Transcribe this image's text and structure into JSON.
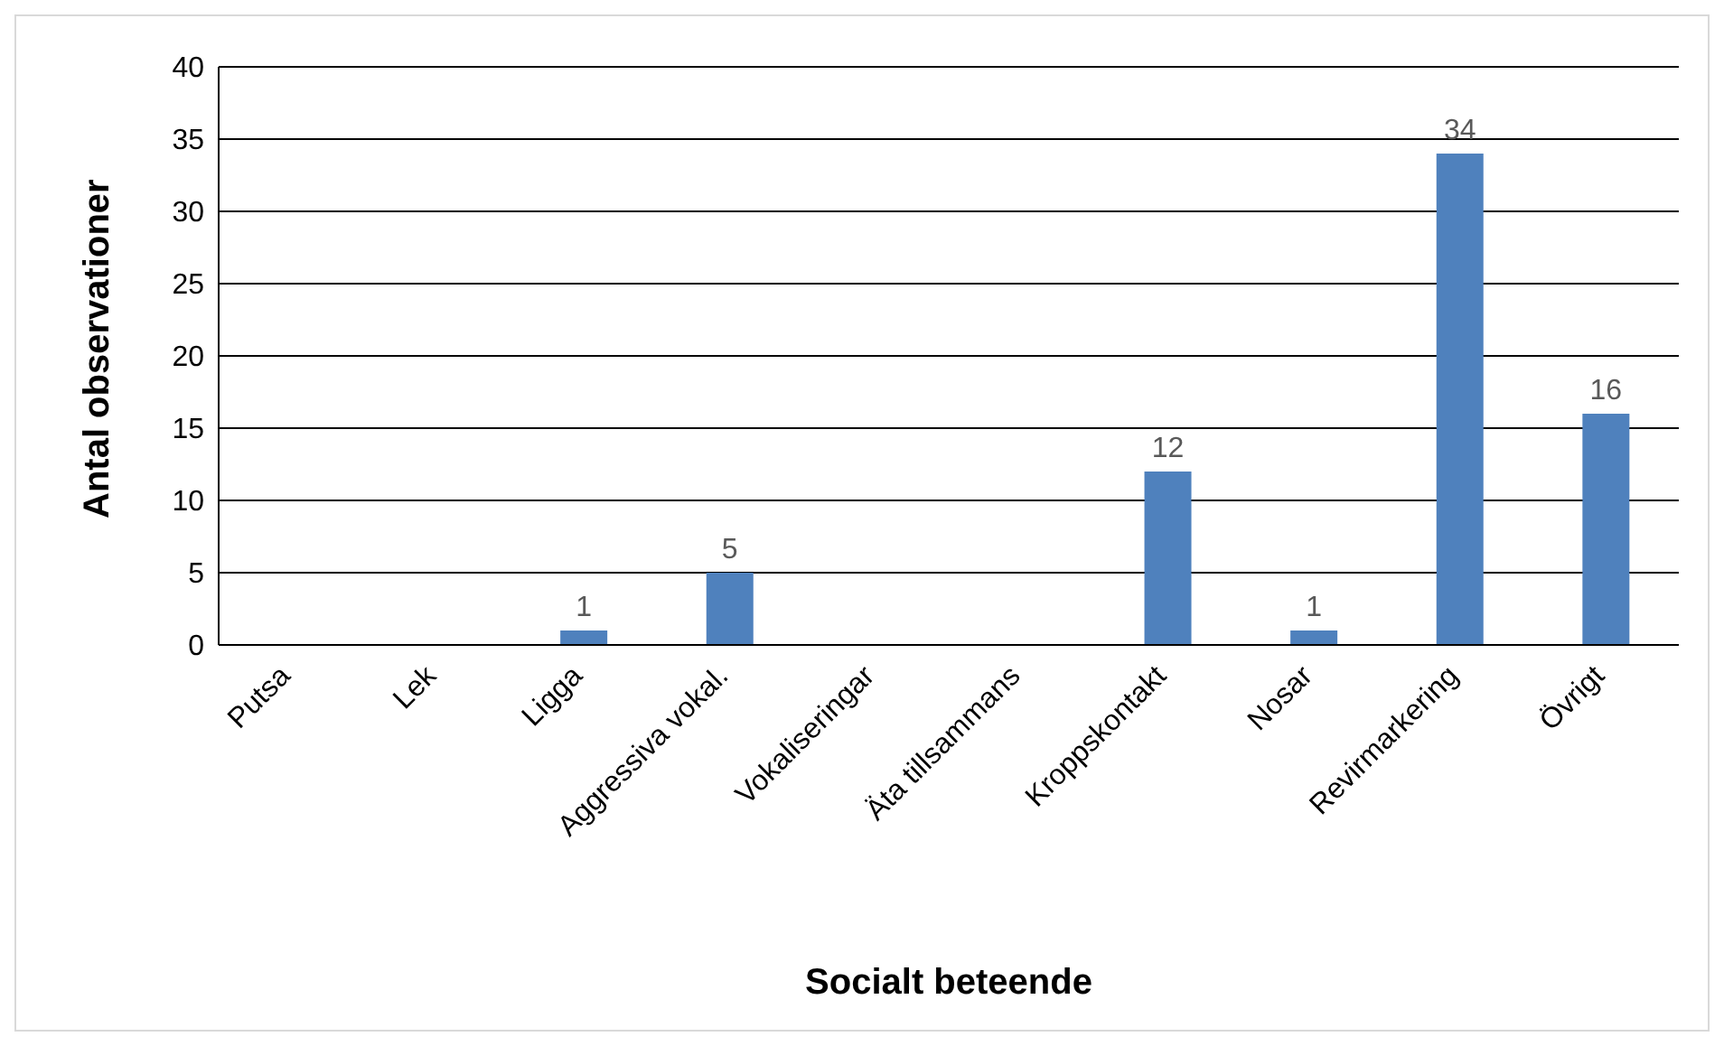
{
  "chart_data": {
    "type": "bar",
    "xlabel": "Socialt beteende",
    "ylabel": "Antal observationer",
    "categories": [
      "Putsa",
      "Lek",
      "Ligga",
      "Aggressiva vokal.",
      "Vokaliseringar",
      "Äta tillsammans",
      "Kroppskontakt",
      "Nosar",
      "Revirmarkering",
      "Övrigt"
    ],
    "values": [
      0,
      0,
      1,
      5,
      0,
      0,
      12,
      1,
      34,
      16
    ],
    "value_labels": [
      null,
      null,
      "1",
      "5",
      null,
      null,
      "12",
      "1",
      "34",
      "16"
    ],
    "color": "#4f81bd",
    "ylim": [
      0,
      40
    ],
    "yticks": [
      0,
      5,
      10,
      15,
      20,
      25,
      30,
      35,
      40
    ],
    "grid": "y",
    "legend": false
  }
}
